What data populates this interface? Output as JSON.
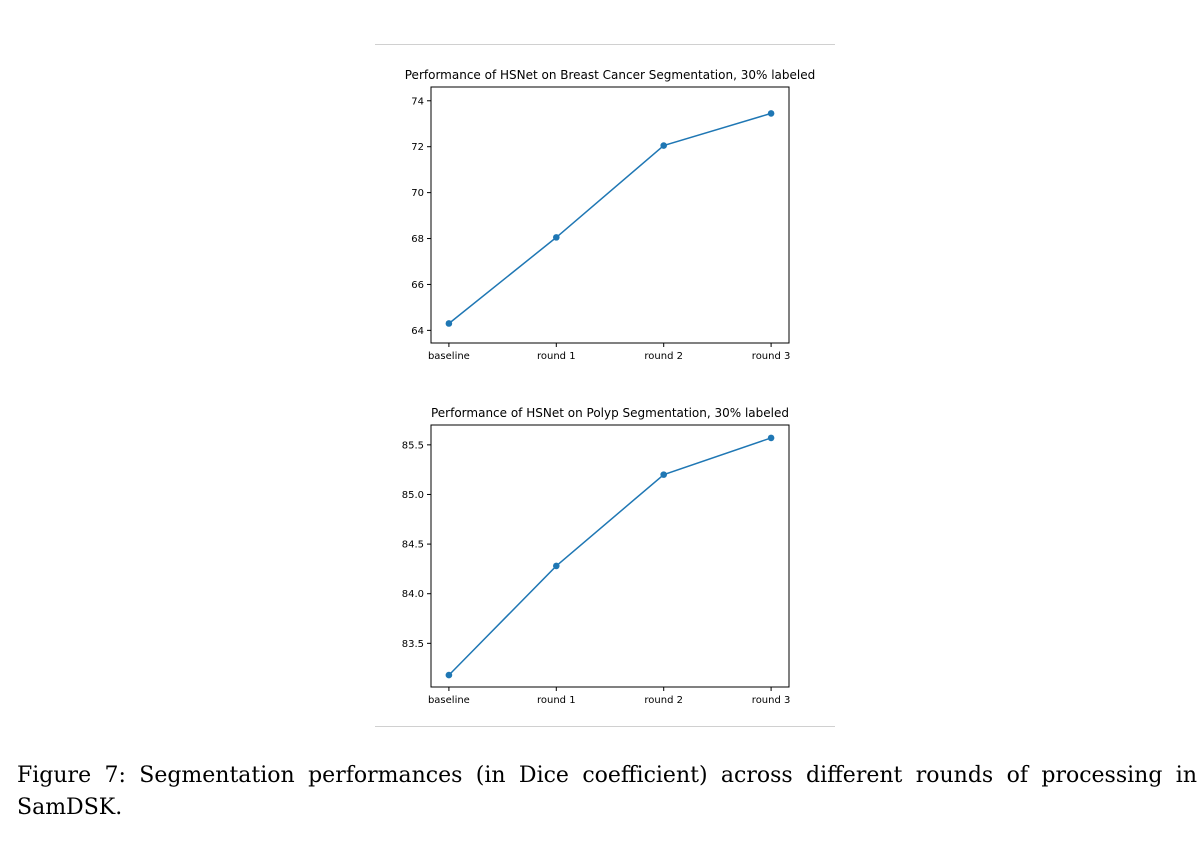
{
  "chart_data": [
    {
      "type": "line",
      "title": "Performance of HSNet on Breast Cancer Segmentation, 30% labeled",
      "xlabel": "",
      "ylabel": "",
      "categories": [
        "baseline",
        "round 1",
        "round 2",
        "round 3"
      ],
      "series": [
        {
          "values": [
            64.3,
            68.05,
            72.05,
            73.45
          ]
        }
      ],
      "ylim": [
        63.45,
        74.6
      ],
      "yticks": [
        64,
        66,
        68,
        70,
        72,
        74
      ],
      "ytick_labels": [
        "64",
        "66",
        "68",
        "70",
        "72",
        "74"
      ],
      "line_color": "#1f77b4",
      "grid": false,
      "markers": true
    },
    {
      "type": "line",
      "title": "Performance of HSNet on Polyp Segmentation, 30% labeled",
      "xlabel": "",
      "ylabel": "",
      "categories": [
        "baseline",
        "round 1",
        "round 2",
        "round 3"
      ],
      "series": [
        {
          "values": [
            83.18,
            84.28,
            85.2,
            85.57
          ]
        }
      ],
      "ylim": [
        83.06,
        85.7
      ],
      "yticks": [
        83.5,
        84.0,
        84.5,
        85.0,
        85.5
      ],
      "ytick_labels": [
        "83.5",
        "84.0",
        "84.5",
        "85.0",
        "85.5"
      ],
      "line_color": "#1f77b4",
      "grid": false,
      "markers": true
    }
  ],
  "caption": {
    "text": "Figure 7: Segmentation performances (in Dice coefficient) across different rounds of processing in SamDSK."
  }
}
